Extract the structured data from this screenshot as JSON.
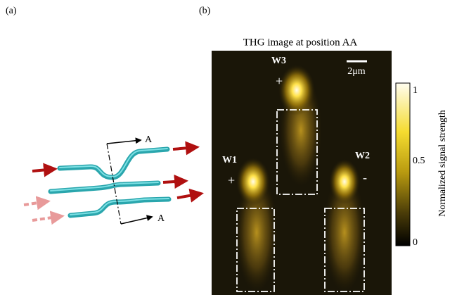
{
  "panels": [
    {
      "label": "(a)"
    },
    {
      "label": "(b)"
    }
  ],
  "diagram": {
    "section_labels": [
      "A",
      "A"
    ]
  },
  "image": {
    "title": "THG image at position AA",
    "scale_bar": "2μm",
    "waveguides": [
      {
        "label": "W1",
        "sign": "+"
      },
      {
        "label": "W2",
        "sign": "-"
      },
      {
        "label": "W3",
        "sign": "+"
      }
    ]
  },
  "colorbar": {
    "label": "Normalized signal strength",
    "ticks": [
      "1",
      "0.5",
      "0"
    ]
  }
}
